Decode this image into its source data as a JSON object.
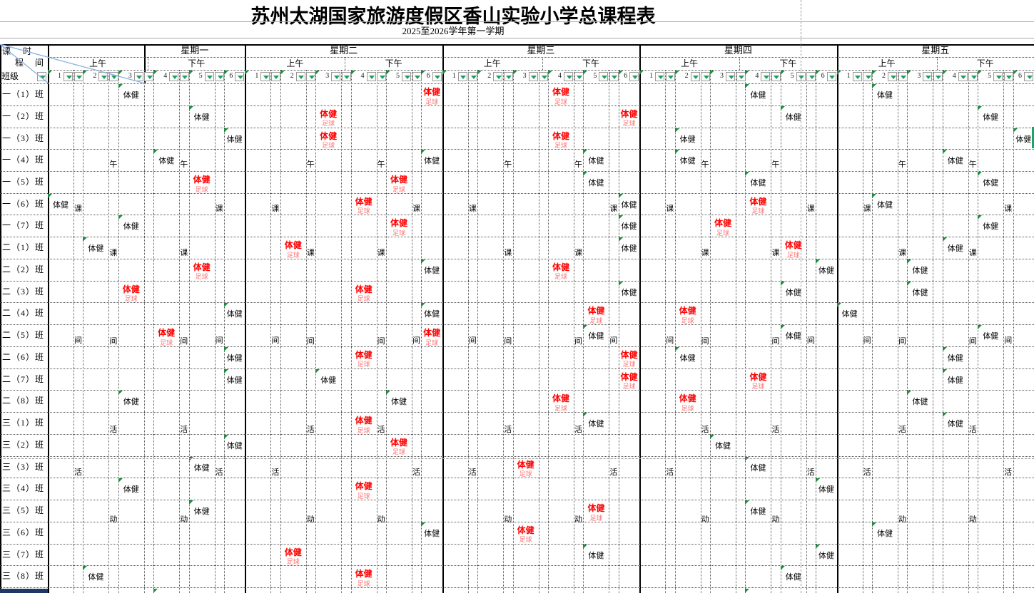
{
  "title": "苏州太湖国家旅游度假区香山实验小学总课程表",
  "subtitle": "2025至2026学年第一学期",
  "corner": {
    "course": "课程",
    "time": "时间",
    "class": "班级"
  },
  "weekdays": [
    "星期一",
    "星期二",
    "星期三",
    "星期四",
    "星期五"
  ],
  "halfday": {
    "am": "上午",
    "pm": "下午"
  },
  "periods": [
    "1",
    "2",
    "3",
    "4",
    "5",
    "6"
  ],
  "subject": {
    "pe": "体健",
    "football": "足球"
  },
  "break_columns": {
    "type_a_chars": [
      "课",
      "间",
      "活"
    ],
    "type_b_chars": [
      "午",
      "课",
      "间",
      "活",
      "动"
    ]
  },
  "class_names": [
    "一（1）班",
    "一（2）班",
    "一（3）班",
    "一（4）班",
    "一（5）班",
    "一（6）班",
    "一（7）班",
    "二（1）班",
    "二（2）班",
    "二（3）班",
    "二（4）班",
    "二（5）班",
    "二（6）班",
    "二（7）班",
    "二（8）班",
    "三（1）班",
    "三（2）班",
    "三（3）班",
    "三（4）班",
    "三（5）班",
    "三（6）班",
    "三（7）班",
    "三（8）班"
  ],
  "schedule": [
    [
      "3",
      "6F",
      "4F",
      "4",
      "2"
    ],
    [
      "5",
      "3F",
      "6F",
      "5",
      "5"
    ],
    [
      "6",
      "3F",
      "4F",
      "2",
      "6"
    ],
    [
      "4",
      "6",
      "5",
      "2",
      "4"
    ],
    [
      "5F",
      "5F",
      "5",
      "4",
      "5"
    ],
    [
      "1",
      "4F",
      "6",
      "4F",
      "2"
    ],
    [
      "3",
      "5F",
      "6",
      "3F",
      "5"
    ],
    [
      "2",
      "2F",
      "6",
      "5F",
      "4"
    ],
    [
      "5F",
      "6",
      "4F",
      "6",
      "3"
    ],
    [
      "3F",
      "4F",
      "6",
      "5",
      "3"
    ],
    [
      "6",
      "6",
      "5F",
      "2F",
      "1"
    ],
    [
      "4F",
      "6F",
      "5",
      "5",
      "5"
    ],
    [
      "6",
      "4F",
      "6F",
      "2",
      "4"
    ],
    [
      "6",
      "3",
      "6F",
      "4F",
      "4"
    ],
    [
      "3",
      "5",
      "4F",
      "2F",
      "3"
    ],
    [
      null,
      "4F",
      "5",
      null,
      "4"
    ],
    [
      "6",
      "5F",
      null,
      "3",
      null
    ],
    [
      "5",
      null,
      "3F",
      "4",
      null
    ],
    [
      "3",
      "4F",
      null,
      "6",
      null
    ],
    [
      "5",
      null,
      "5F",
      "4",
      null
    ],
    [
      null,
      "6",
      "3F",
      null,
      "2"
    ],
    [
      null,
      "2F",
      "5",
      "6",
      null
    ],
    [
      "2",
      "4F",
      null,
      "5",
      null
    ]
  ],
  "partial_next_row_flag_days": [
    0,
    3
  ],
  "colors": {
    "pe_black": "#000000",
    "pe_red": "#ff0000",
    "football_red": "#ff7373",
    "flag_green": "#1e8e3e",
    "arrow_green": "#1f9d5f",
    "selection_navy": "#1f3864",
    "sliver_green": "#21a366",
    "diagonal_blue": "#8db4e2"
  }
}
